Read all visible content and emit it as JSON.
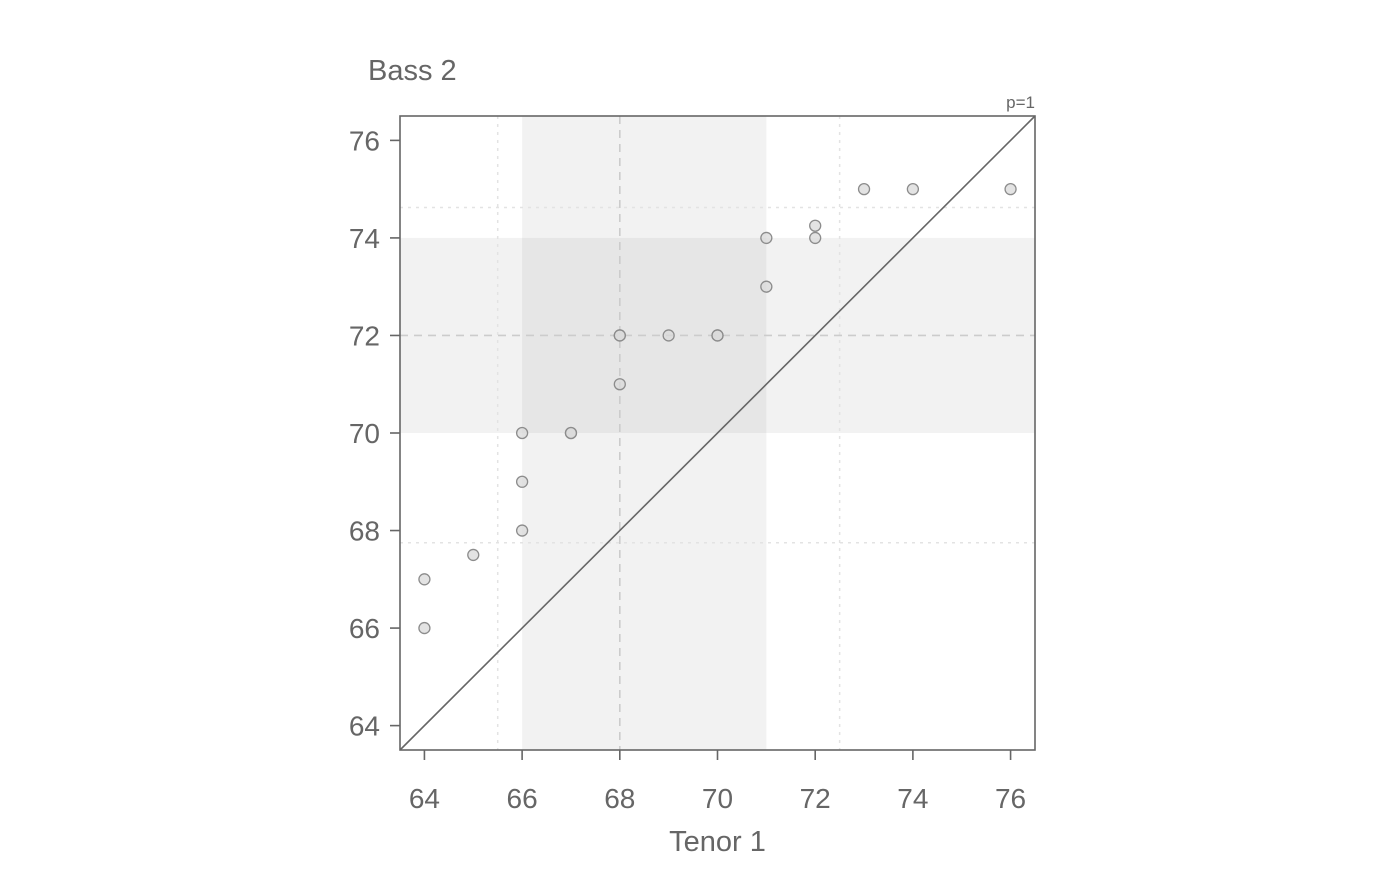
{
  "chart_data": {
    "type": "scatter",
    "title": "",
    "xlabel": "Tenor 1",
    "ylabel": "Bass 2",
    "xlim": [
      63.5,
      76.5
    ],
    "ylim": [
      63.5,
      76.5
    ],
    "x_ticks": [
      "64",
      "66",
      "68",
      "70",
      "72",
      "74",
      "76"
    ],
    "y_ticks": [
      "64",
      "66",
      "68",
      "70",
      "72",
      "74",
      "76"
    ],
    "annotation": "p=1",
    "reference_line": "y = x",
    "x_quartile_band": [
      66,
      71
    ],
    "y_quartile_band": [
      70,
      74
    ],
    "x_median": 68,
    "y_median": 72,
    "x_outer_fences": [
      65.5,
      72.5
    ],
    "y_outer_fences": [
      67.75,
      74.625
    ],
    "grid": false,
    "colors": {
      "point_fill": "#d9d9d9",
      "point_stroke": "#8c8c8c",
      "band": "#f2f2f2",
      "band_overlap": "#e6e6e6",
      "axis": "#666666",
      "median_line": "#cccccc",
      "fence_line": "#e3e3e3"
    },
    "points": [
      {
        "x": 64,
        "y": 66
      },
      {
        "x": 64,
        "y": 67
      },
      {
        "x": 65,
        "y": 67.5
      },
      {
        "x": 66,
        "y": 68
      },
      {
        "x": 66,
        "y": 69
      },
      {
        "x": 66,
        "y": 70
      },
      {
        "x": 67,
        "y": 70
      },
      {
        "x": 67,
        "y": 70
      },
      {
        "x": 68,
        "y": 71
      },
      {
        "x": 68,
        "y": 72
      },
      {
        "x": 68,
        "y": 72
      },
      {
        "x": 69,
        "y": 72
      },
      {
        "x": 70,
        "y": 72
      },
      {
        "x": 70,
        "y": 72
      },
      {
        "x": 71,
        "y": 73
      },
      {
        "x": 71,
        "y": 74
      },
      {
        "x": 72,
        "y": 74
      },
      {
        "x": 72,
        "y": 74.25
      },
      {
        "x": 73,
        "y": 75
      },
      {
        "x": 74,
        "y": 75
      },
      {
        "x": 76,
        "y": 75
      }
    ]
  }
}
